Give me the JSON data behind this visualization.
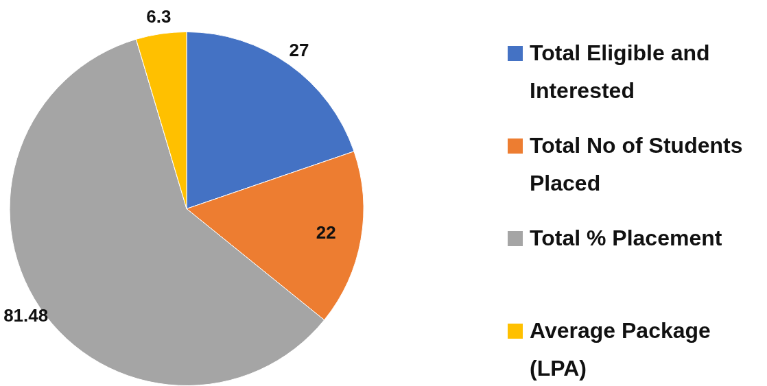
{
  "chart_data": {
    "type": "pie",
    "categories": [
      "Total Eligible and Interested",
      "Total No of Students Placed",
      "Total % Placement",
      "Average Package (LPA)"
    ],
    "values": [
      27,
      22,
      81.48,
      6.3
    ],
    "colors": [
      "#4472c4",
      "#ed7d31",
      "#a5a5a5",
      "#ffc000"
    ],
    "data_labels": true,
    "legend": "right"
  }
}
